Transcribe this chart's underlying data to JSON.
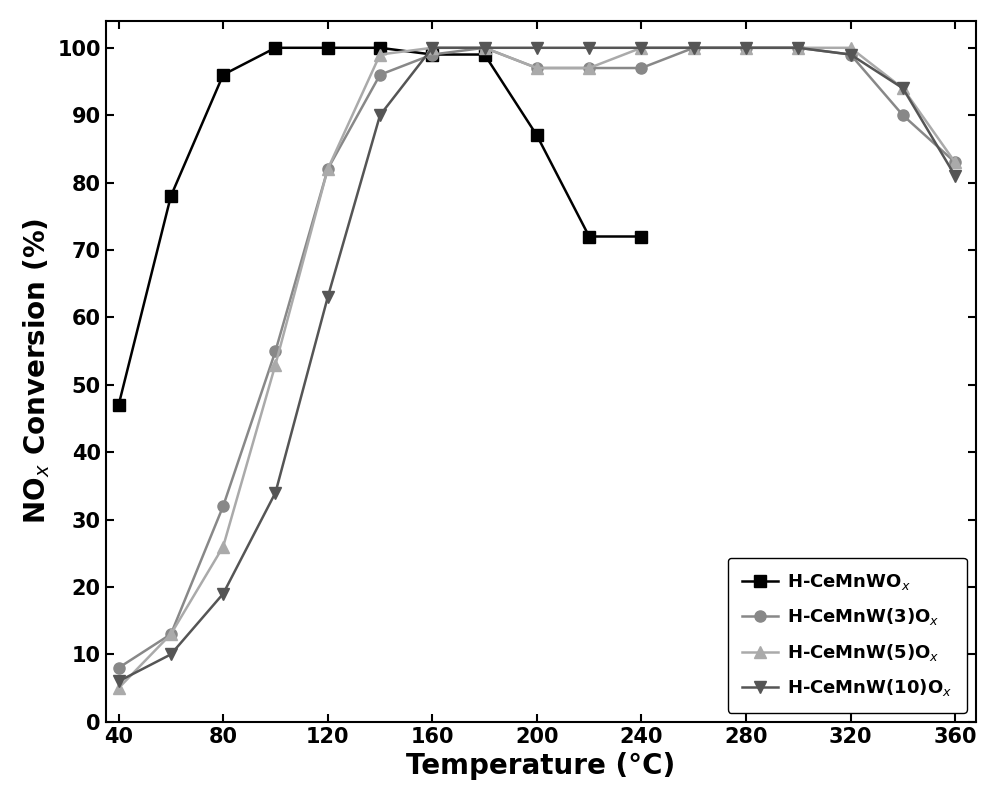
{
  "series": [
    {
      "label": "H-CeMnWO$_x$",
      "color": "#000000",
      "linestyle": "-",
      "marker": "s",
      "markersize": 8,
      "linewidth": 1.8,
      "x": [
        40,
        60,
        80,
        100,
        120,
        140,
        160,
        180,
        200,
        220,
        240
      ],
      "y": [
        47,
        78,
        96,
        100,
        100,
        100,
        99,
        99,
        87,
        72,
        72
      ]
    },
    {
      "label": "H-CeMnW(3)O$_x$",
      "color": "#888888",
      "linestyle": "-",
      "marker": "o",
      "markersize": 8,
      "linewidth": 1.8,
      "x": [
        40,
        60,
        80,
        100,
        120,
        140,
        160,
        180,
        200,
        220,
        240,
        260,
        280,
        300,
        320,
        340,
        360
      ],
      "y": [
        8,
        13,
        32,
        55,
        82,
        96,
        99,
        100,
        97,
        97,
        97,
        100,
        100,
        100,
        99,
        90,
        83
      ]
    },
    {
      "label": "H-CeMnW(5)O$_x$",
      "color": "#aaaaaa",
      "linestyle": "-",
      "marker": "^",
      "markersize": 8,
      "linewidth": 1.8,
      "x": [
        40,
        60,
        80,
        100,
        120,
        140,
        160,
        180,
        200,
        220,
        240,
        260,
        280,
        300,
        320,
        340,
        360
      ],
      "y": [
        5,
        13,
        26,
        53,
        82,
        99,
        100,
        100,
        97,
        97,
        100,
        100,
        100,
        100,
        100,
        94,
        83
      ]
    },
    {
      "label": "H-CeMnW(10)O$_x$",
      "color": "#555555",
      "linestyle": "-",
      "marker": "v",
      "markersize": 8,
      "linewidth": 1.8,
      "x": [
        40,
        60,
        80,
        100,
        120,
        140,
        160,
        180,
        200,
        220,
        240,
        260,
        280,
        300,
        320,
        340,
        360
      ],
      "y": [
        6,
        10,
        19,
        34,
        63,
        90,
        100,
        100,
        100,
        100,
        100,
        100,
        100,
        100,
        99,
        94,
        81
      ]
    }
  ],
  "xlabel": "Temperature (°C)",
  "ylabel": "NO$_x$ Conversion (%)",
  "xlim": [
    35,
    368
  ],
  "ylim": [
    0,
    104
  ],
  "xticks": [
    40,
    80,
    120,
    160,
    200,
    240,
    280,
    320,
    360
  ],
  "yticks": [
    0,
    10,
    20,
    30,
    40,
    50,
    60,
    70,
    80,
    90,
    100
  ],
  "figsize": [
    10.0,
    8.01
  ],
  "dpi": 100,
  "legend_fontsize": 13,
  "xlabel_fontsize": 20,
  "ylabel_fontsize": 20,
  "tick_labelsize": 15
}
